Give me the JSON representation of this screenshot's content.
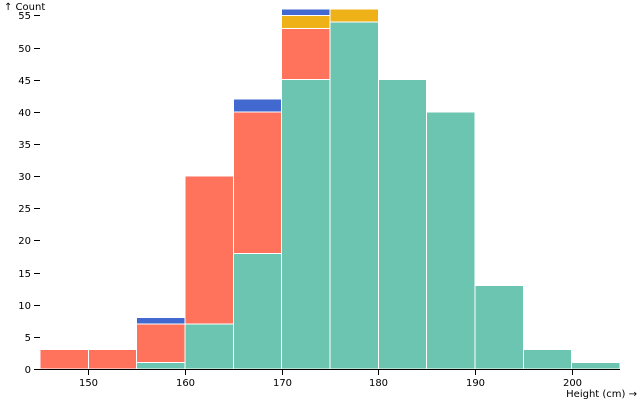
{
  "chart_data": {
    "type": "bar",
    "stacked": true,
    "ylabel": "↑ Count",
    "xlabel": "Height (cm) →",
    "xlim": [
      145,
      205
    ],
    "ylim": [
      0,
      56
    ],
    "x_ticks": [
      150,
      160,
      170,
      180,
      190,
      200
    ],
    "y_ticks": [
      0,
      5,
      10,
      15,
      20,
      25,
      30,
      35,
      40,
      45,
      50,
      55
    ],
    "bins": [
      [
        145,
        150
      ],
      [
        150,
        155
      ],
      [
        155,
        160
      ],
      [
        160,
        165
      ],
      [
        165,
        170
      ],
      [
        170,
        175
      ],
      [
        175,
        180
      ],
      [
        180,
        185
      ],
      [
        185,
        190
      ],
      [
        190,
        195
      ],
      [
        195,
        200
      ],
      [
        200,
        205
      ]
    ],
    "series": [
      {
        "color": "#6cc5b0",
        "values": [
          0,
          0,
          1,
          7,
          18,
          45,
          54,
          45,
          40,
          13,
          3,
          1
        ]
      },
      {
        "color": "#ff725c",
        "values": [
          3,
          3,
          6,
          23,
          22,
          8,
          0,
          0,
          0,
          0,
          0,
          0
        ]
      },
      {
        "color": "#efb118",
        "values": [
          0,
          0,
          0,
          0,
          0,
          2,
          2,
          0,
          0,
          0,
          0,
          0
        ]
      },
      {
        "color": "#4269d0",
        "values": [
          0,
          0,
          1,
          0,
          2,
          1,
          0,
          0,
          0,
          0,
          0,
          0
        ]
      }
    ]
  }
}
